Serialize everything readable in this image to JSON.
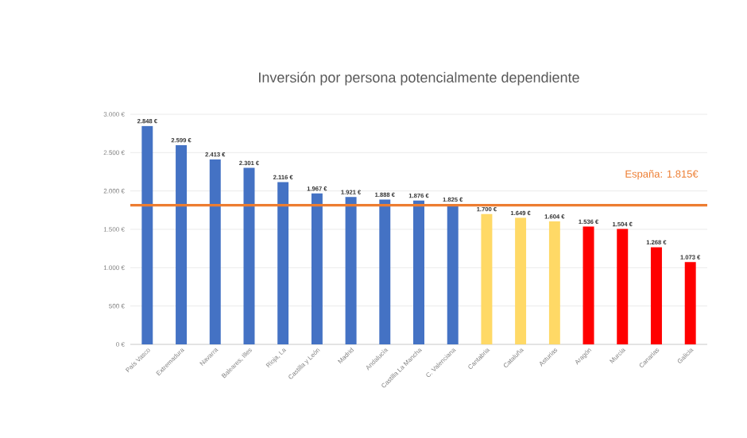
{
  "chart_data": {
    "type": "bar",
    "title": "Inversión por persona potencialmente dependiente",
    "categories": [
      "País Vasco",
      "Extremadura",
      "Navarra",
      "Baleares, Illes",
      "Rioja, La",
      "Castilla y León",
      "Madrid",
      "Andalucía",
      "Castilla La Mancha",
      "C. Valenciana",
      "Cantabria",
      "Cataluña",
      "Asturias",
      "Aragón",
      "Murcia",
      "Canarias",
      "Galicia"
    ],
    "values": [
      2848,
      2599,
      2413,
      2301,
      2116,
      1967,
      1921,
      1888,
      1876,
      1825,
      1700,
      1649,
      1604,
      1536,
      1504,
      1268,
      1073
    ],
    "value_labels": [
      "2.848 €",
      "2.599 €",
      "2.413 €",
      "2.301 €",
      "2.116 €",
      "1.967 €",
      "1.921 €",
      "1.888 €",
      "1.876 €",
      "1.825 €",
      "1.700 €",
      "1.649 €",
      "1.604 €",
      "1.536 €",
      "1.504 €",
      "1.268 €",
      "1.073 €"
    ],
    "colors": [
      "#4472c4",
      "#4472c4",
      "#4472c4",
      "#4472c4",
      "#4472c4",
      "#4472c4",
      "#4472c4",
      "#4472c4",
      "#4472c4",
      "#4472c4",
      "#ffd966",
      "#ffd966",
      "#ffd966",
      "#ff0000",
      "#ff0000",
      "#ff0000",
      "#ff0000"
    ],
    "ylim": [
      0,
      3000
    ],
    "yticks": [
      {
        "value": 0,
        "label": "0 €"
      },
      {
        "value": 500,
        "label": "500 €"
      },
      {
        "value": 1000,
        "label": "1.000 €"
      },
      {
        "value": 1500,
        "label": "1.500 €"
      },
      {
        "value": 2000,
        "label": "2.000 €"
      },
      {
        "value": 2500,
        "label": "2.500 €"
      },
      {
        "value": 3000,
        "label": "3.000 €"
      }
    ],
    "grid": "y",
    "ref_lines": [
      {
        "axis": "y",
        "value": 1815,
        "label": "España: 1.815€",
        "color": "#ed7d31"
      }
    ]
  }
}
